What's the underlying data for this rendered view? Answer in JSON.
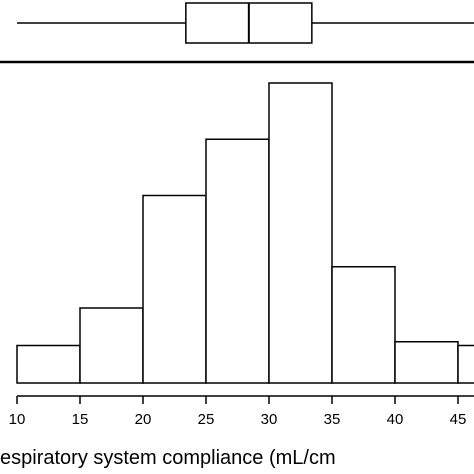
{
  "chart_data": {
    "type": "bar",
    "subtype": "histogram-with-boxplot",
    "xlabel": "espiratory system compliance (mL/cm",
    "x_ticks": [
      10,
      15,
      20,
      25,
      30,
      35,
      40,
      45
    ],
    "xlim": [
      10,
      47
    ],
    "bins": [
      {
        "start": 10,
        "end": 15,
        "value": 1
      },
      {
        "start": 15,
        "end": 20,
        "value": 2
      },
      {
        "start": 20,
        "end": 25,
        "value": 5
      },
      {
        "start": 25,
        "end": 30,
        "value": 6.5
      },
      {
        "start": 30,
        "end": 35,
        "value": 8
      },
      {
        "start": 35,
        "end": 40,
        "value": 3.1
      },
      {
        "start": 40,
        "end": 45,
        "value": 1.1
      },
      {
        "start": 45,
        "end": 50,
        "value": 1
      }
    ],
    "ylim": [
      0,
      8
    ],
    "boxplot": {
      "whisker_low": 10,
      "q1": 23.4,
      "median": 28.4,
      "q3": 33.4,
      "whisker_high": 47
    },
    "grid": false,
    "legend": "none"
  }
}
